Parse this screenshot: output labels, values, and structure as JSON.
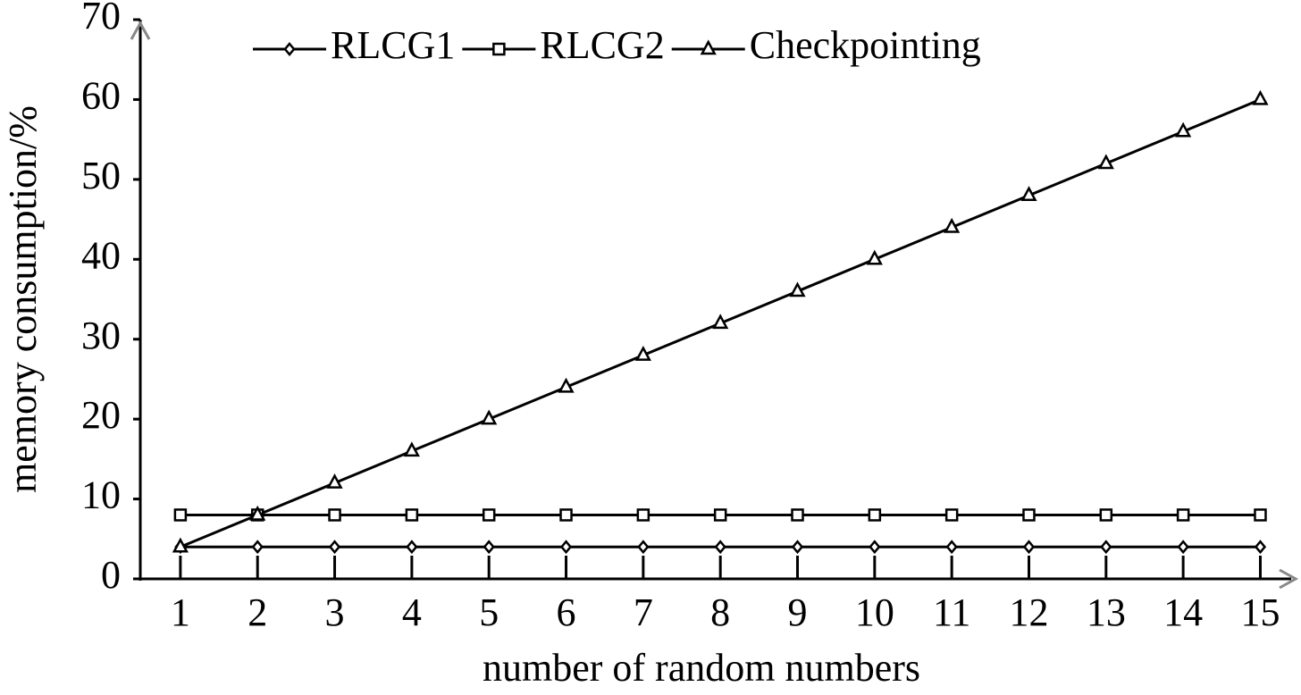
{
  "chart_data": {
    "type": "line",
    "x_label": "number of random numbers",
    "y_label": "memory consumption/%",
    "x": [
      1,
      2,
      3,
      4,
      5,
      6,
      7,
      8,
      9,
      10,
      11,
      12,
      13,
      14,
      15
    ],
    "series": [
      {
        "name": "RLCG1",
        "color": "#000000",
        "marker": "diamond",
        "values": [
          4,
          4,
          4,
          4,
          4,
          4,
          4,
          4,
          4,
          4,
          4,
          4,
          4,
          4,
          4
        ]
      },
      {
        "name": "RLCG2",
        "color": "#000000",
        "marker": "square",
        "values": [
          8,
          8,
          8,
          8,
          8,
          8,
          8,
          8,
          8,
          8,
          8,
          8,
          8,
          8,
          8
        ]
      },
      {
        "name": "Checkpointing",
        "color": "#000000",
        "marker": "triangle",
        "values": [
          4,
          8,
          12,
          16,
          20,
          24,
          28,
          32,
          36,
          40,
          44,
          48,
          52,
          56,
          60
        ]
      }
    ],
    "xlim": [
      0.48,
      15.4
    ],
    "ylim": [
      0,
      70
    ],
    "xticks": [
      1,
      2,
      3,
      4,
      5,
      6,
      7,
      8,
      9,
      10,
      11,
      12,
      13,
      14,
      15
    ],
    "yticks": [
      0,
      10,
      20,
      30,
      40,
      50,
      60,
      70
    ],
    "grid": false,
    "legend": "upper center"
  }
}
